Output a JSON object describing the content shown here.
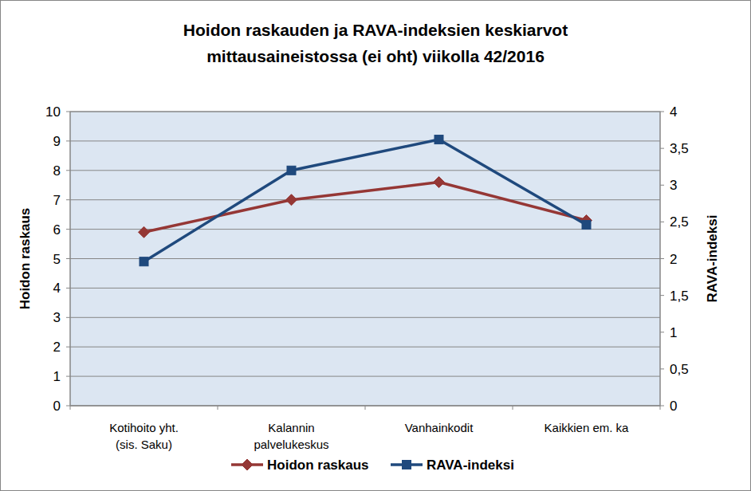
{
  "chart_data": {
    "type": "line",
    "title": "Hoidon raskauden ja RAVA-indeksien keskiarvot\nmittausaineistossa (ei oht) viikolla 42/2016",
    "y_label": "Hoidon raskaus",
    "y2_label": "RAVA-indeksi",
    "categories": [
      "Kotihoito yht.\n(sis. Saku)",
      "Kalannin\npalvelukeskus",
      "Vanhainkodit",
      "Kaikkien em. ka"
    ],
    "series": [
      {
        "name": "Hoidon raskaus",
        "color": "#953735",
        "marker": "diamond",
        "values": [
          5.9,
          7.0,
          7.6,
          6.3
        ]
      },
      {
        "name": "RAVA-indeksi",
        "color": "#1f497d",
        "marker": "square",
        "axis": "y2",
        "values": [
          1.96,
          3.2,
          3.62,
          2.46
        ]
      }
    ],
    "ylim": [
      0,
      10
    ],
    "yticks": [
      0,
      1,
      2,
      3,
      4,
      5,
      6,
      7,
      8,
      9,
      10
    ],
    "y2lim": [
      0,
      4
    ],
    "y2ticks": [
      0,
      {
        "value": 0.5,
        "label": "0,5"
      },
      1,
      {
        "value": 1.5,
        "label": "1,5"
      },
      2,
      {
        "value": 2.5,
        "label": "2,5"
      },
      3,
      {
        "value": 3.5,
        "label": "3,5"
      },
      4
    ],
    "grid": true,
    "legend": "bottom"
  }
}
